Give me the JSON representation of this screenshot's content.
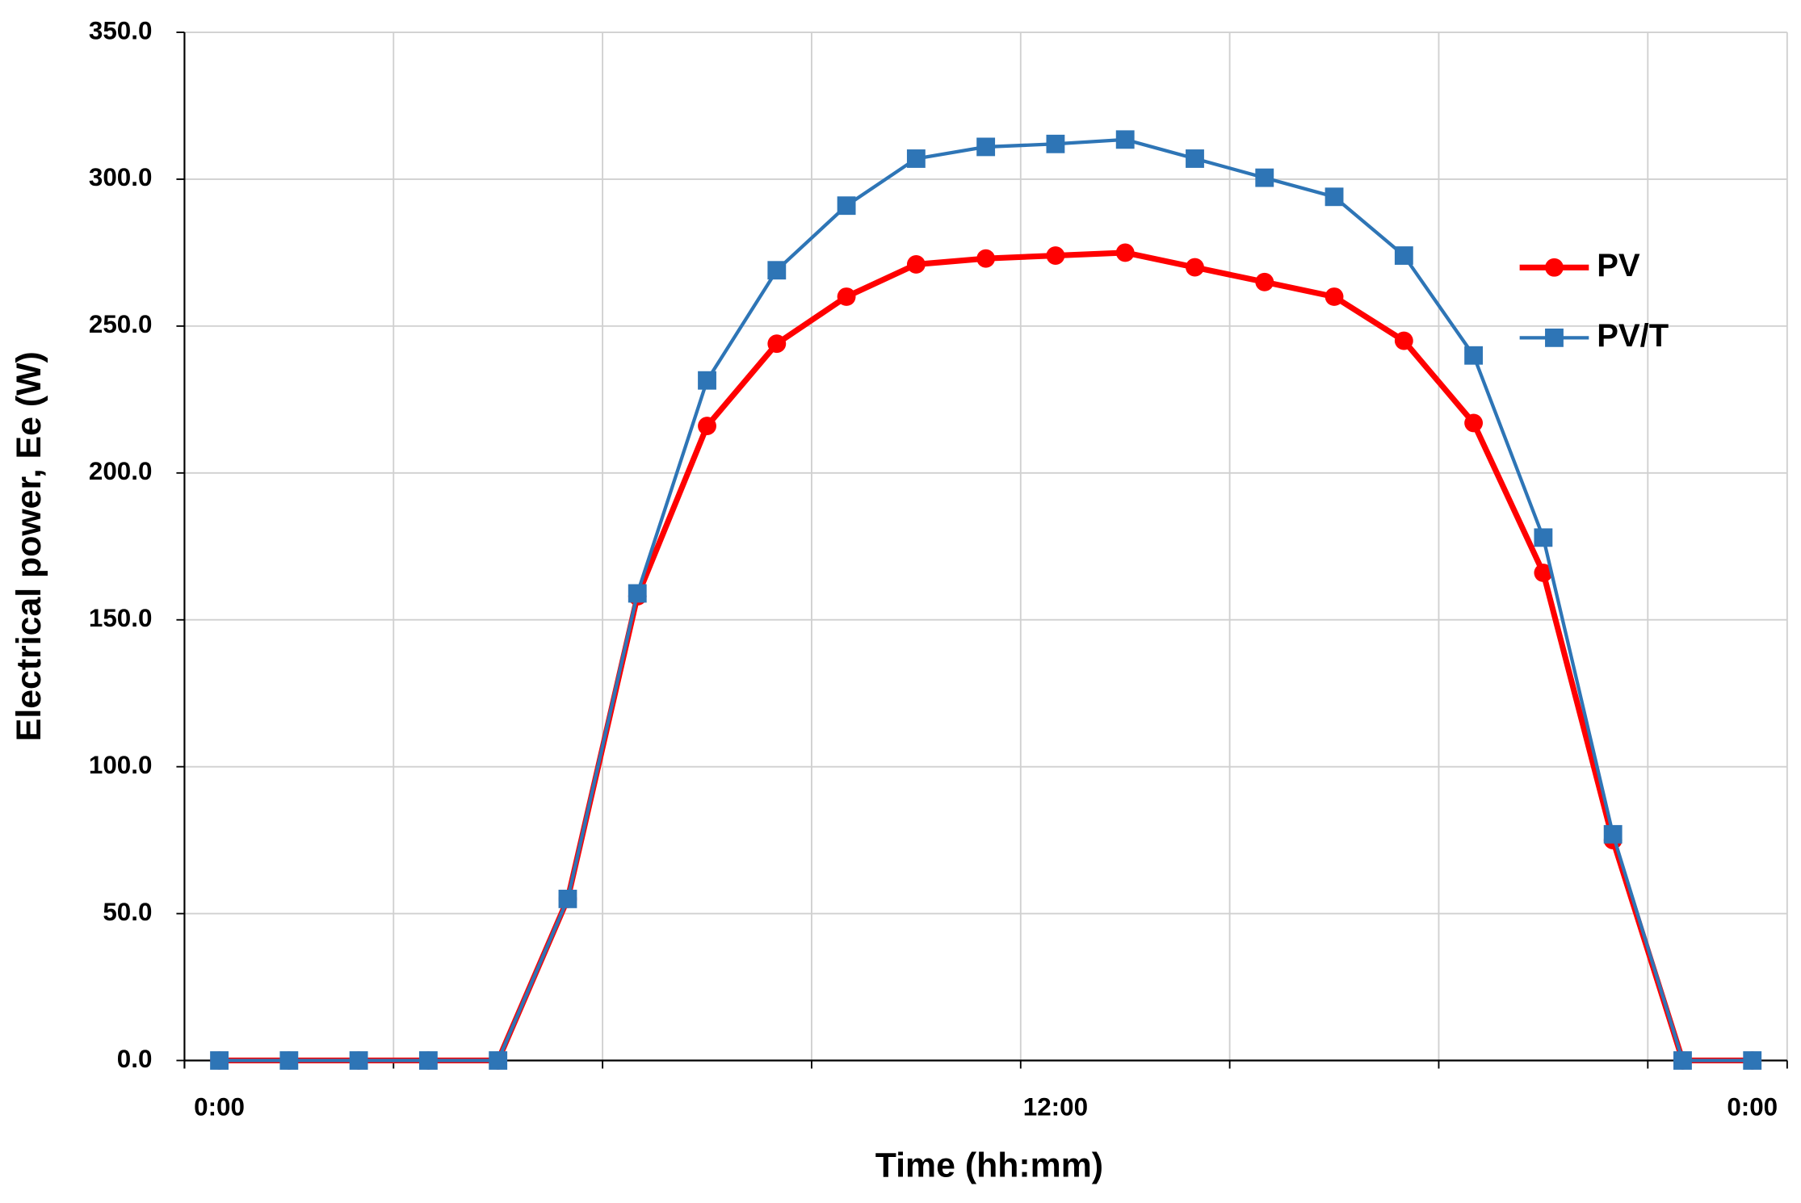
{
  "chart_data": {
    "type": "line",
    "x_label": "Time (hh:mm)",
    "y_label": "Electrical power, Ee (W)",
    "categories": [
      "0:00",
      null,
      null,
      null,
      null,
      null,
      null,
      null,
      null,
      null,
      null,
      null,
      "12:00",
      null,
      null,
      null,
      null,
      null,
      null,
      null,
      null,
      null,
      "0:00"
    ],
    "series": [
      {
        "name": "PV",
        "color": "#ff0000",
        "marker": "circle",
        "values": [
          0,
          0,
          0,
          0,
          0,
          55,
          158,
          216,
          244,
          260,
          271,
          273,
          274,
          275,
          270,
          265,
          260,
          245,
          217,
          166,
          75,
          0,
          0
        ]
      },
      {
        "name": "PV/T",
        "color": "#2e75b6",
        "marker": "square",
        "values": [
          0,
          0,
          0,
          0,
          0,
          55,
          159,
          231.5,
          269,
          291,
          307,
          311,
          312,
          313.5,
          307,
          300.5,
          294,
          274,
          240,
          178,
          77,
          0,
          0
        ]
      }
    ],
    "ylim": [
      0,
      350
    ],
    "yticks": [
      {
        "value": 0,
        "label": "0.0"
      },
      {
        "value": 50,
        "label": "50.0"
      },
      {
        "value": 100,
        "label": "100.0"
      },
      {
        "value": 150,
        "label": "150.0"
      },
      {
        "value": 200,
        "label": "200.0"
      },
      {
        "value": 250,
        "label": "250.0"
      },
      {
        "value": 300,
        "label": "300.0"
      },
      {
        "value": 350,
        "label": "350.0"
      }
    ],
    "xgrid_interval": 3,
    "grid": true,
    "legend": "right"
  }
}
